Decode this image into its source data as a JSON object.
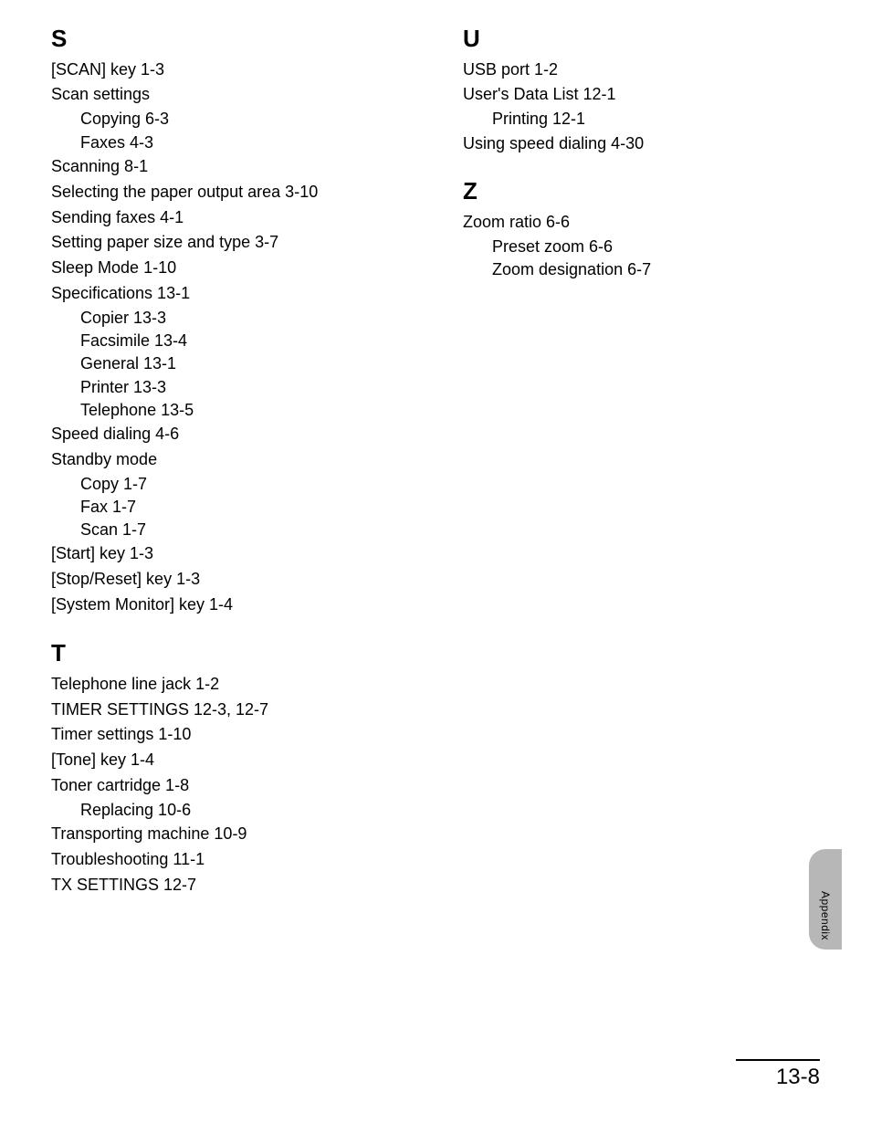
{
  "typography": {
    "section_letter_fontsize_pt": 20,
    "entry_fontsize_pt": 13.5,
    "sidetab_fontsize_pt": 9,
    "pagenum_fontsize_pt": 18,
    "font_family": "Arial",
    "text_color": "#000000",
    "background_color": "#ffffff",
    "sidetab_color": "#b7b7b7",
    "rule_color": "#000000"
  },
  "left_column": [
    {
      "letter": "S",
      "entries": [
        {
          "text": "[SCAN] key 1-3"
        },
        {
          "text": "Scan settings",
          "subs": [
            "Copying 6-3",
            "Faxes 4-3"
          ]
        },
        {
          "text": "Scanning 8-1"
        },
        {
          "text": "Selecting the paper output area 3-10"
        },
        {
          "text": "Sending faxes 4-1"
        },
        {
          "text": "Setting paper size and type 3-7"
        },
        {
          "text": "Sleep Mode 1-10"
        },
        {
          "text": "Specifications 13-1",
          "subs": [
            "Copier 13-3",
            "Facsimile 13-4",
            "General 13-1",
            "Printer 13-3",
            "Telephone 13-5"
          ]
        },
        {
          "text": "Speed dialing 4-6"
        },
        {
          "text": "Standby mode",
          "subs": [
            "Copy 1-7",
            "Fax 1-7",
            "Scan 1-7"
          ]
        },
        {
          "text": "[Start] key 1-3"
        },
        {
          "text": "[Stop/Reset] key 1-3"
        },
        {
          "text": "[System Monitor] key 1-4"
        }
      ]
    },
    {
      "letter": "T",
      "entries": [
        {
          "text": "Telephone line jack 1-2"
        },
        {
          "text": "TIMER SETTINGS 12-3, 12-7"
        },
        {
          "text": "Timer settings 1-10"
        },
        {
          "text": "[Tone] key 1-4"
        },
        {
          "text": "Toner cartridge 1-8",
          "subs": [
            "Replacing 10-6"
          ]
        },
        {
          "text": "Transporting machine 10-9"
        },
        {
          "text": "Troubleshooting 11-1"
        },
        {
          "text": "TX SETTINGS 12-7"
        }
      ]
    }
  ],
  "right_column": [
    {
      "letter": "U",
      "entries": [
        {
          "text": "USB port 1-2"
        },
        {
          "text": "User's Data List 12-1",
          "subs": [
            "Printing 12-1"
          ]
        },
        {
          "text": "Using speed dialing 4-30"
        }
      ]
    },
    {
      "letter": "Z",
      "entries": [
        {
          "text": "Zoom ratio 6-6",
          "subs": [
            "Preset zoom 6-6",
            "Zoom designation 6-7"
          ]
        }
      ]
    }
  ],
  "side_tab": {
    "label": "Appendix"
  },
  "footer": {
    "page_number": "13-8"
  }
}
